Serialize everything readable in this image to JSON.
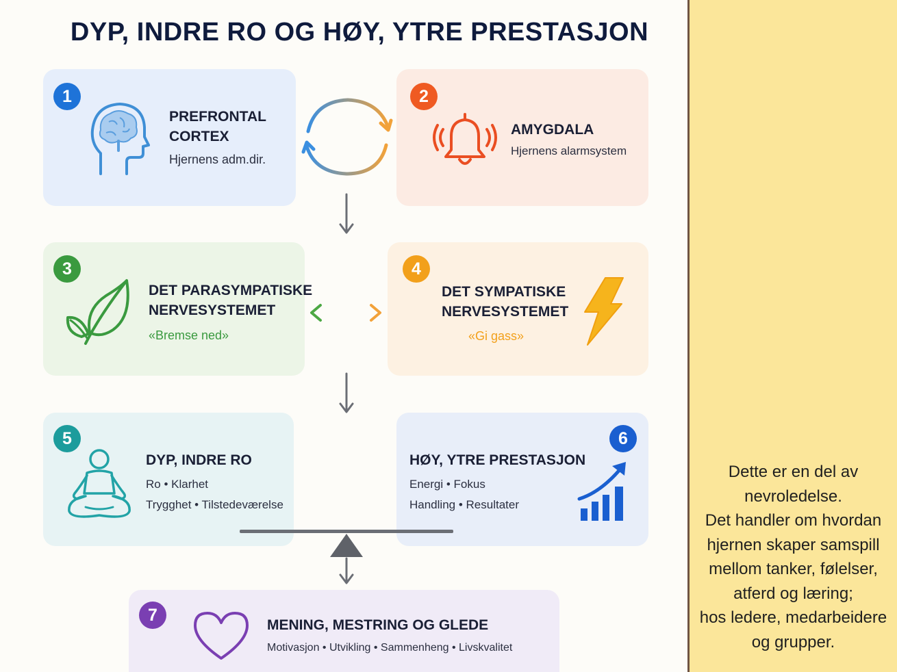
{
  "title": "DYP, INDRE RO OG HØY, YTRE PRESTASJON",
  "boxes": [
    {
      "number": "1",
      "heading_line1": "PREFRONTAL",
      "heading_line2": "CORTEX",
      "subtitle": "Hjernens adm.dir.",
      "icon": "brain-head-icon",
      "color": "#1e73d8"
    },
    {
      "number": "2",
      "heading": "AMYGDALA",
      "subtitle": "Hjernens alarmsystem",
      "icon": "alarm-bell-icon",
      "color": "#ef5a22"
    },
    {
      "number": "3",
      "heading_line1": "DET PARASYMPATISKE",
      "heading_line2": "NERVESYSTEMET",
      "subtitle": "«Bremse ned»",
      "icon": "leaf-icon",
      "color": "#3a9a3f"
    },
    {
      "number": "4",
      "heading_line1": "DET SYMPATISKE",
      "heading_line2": "NERVESYSTEMET",
      "subtitle": "«Gi gass»",
      "icon": "lightning-icon",
      "color": "#f2a01b"
    },
    {
      "number": "5",
      "heading": "DYP, INDRE RO",
      "line1": "Ro • Klarhet",
      "line2": "Trygghet • Tilstedeværelse",
      "icon": "meditation-icon",
      "color": "#1c9c9c"
    },
    {
      "number": "6",
      "heading": "HØY, YTRE PRESTASJON",
      "line1": "Energi • Fokus",
      "line2": "Handling • Resultater",
      "icon": "growth-chart-icon",
      "color": "#1a5fd0"
    },
    {
      "number": "7",
      "heading": "MENING, MESTRING OG GLEDE",
      "line1": "Motivasjon • Utvikling • Sammenheng • Livskvalitet",
      "icon": "heart-icon",
      "color": "#7a3fb2"
    }
  ],
  "side_note": [
    "Dette er en del av",
    "nevroledelse.",
    "Det handler om hvordan",
    "hjernen skaper samspill",
    "mellom tanker, følelser,",
    "atferd og læring;",
    "hos ledere, medarbeidere",
    "og grupper."
  ]
}
